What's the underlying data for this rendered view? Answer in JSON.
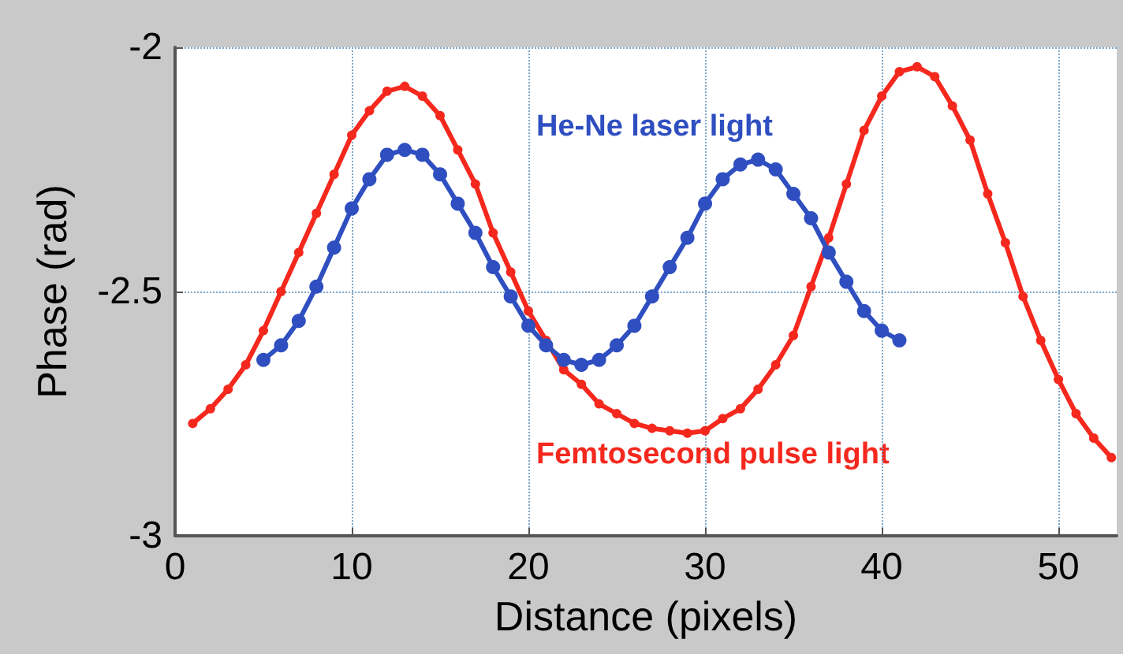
{
  "chart_data": {
    "type": "line",
    "xlabel": "Distance (pixels)",
    "ylabel": "Phase (rad)",
    "xlim": [
      0,
      53.3
    ],
    "xticks": [
      0,
      10,
      20,
      30,
      40,
      50
    ],
    "ylim": [
      -3,
      -2
    ],
    "yticks": [
      -3,
      -2.5,
      -2
    ],
    "grid": true,
    "marker": "circle",
    "line_style": "solid",
    "series": [
      {
        "name": "He-Ne laser light",
        "color": "#2f4fc0",
        "x": [
          5,
          6,
          7,
          8,
          9,
          10,
          11,
          12,
          13,
          14,
          15,
          16,
          17,
          18,
          19,
          20,
          21,
          22,
          23,
          24,
          25,
          26,
          27,
          28,
          29,
          30,
          31,
          32,
          33,
          34,
          35,
          36,
          37,
          38,
          39,
          40,
          41
        ],
        "values": [
          -2.64,
          -2.61,
          -2.56,
          -2.49,
          -2.41,
          -2.33,
          -2.27,
          -2.22,
          -2.21,
          -2.22,
          -2.26,
          -2.32,
          -2.38,
          -2.45,
          -2.51,
          -2.57,
          -2.61,
          -2.64,
          -2.65,
          -2.64,
          -2.61,
          -2.57,
          -2.51,
          -2.45,
          -2.39,
          -2.32,
          -2.27,
          -2.24,
          -2.23,
          -2.25,
          -2.3,
          -2.35,
          -2.42,
          -2.48,
          -2.54,
          -2.58,
          -2.6
        ]
      },
      {
        "name": "Femtosecond pulse light",
        "color": "#f5281e",
        "x": [
          1,
          2,
          3,
          4,
          5,
          6,
          7,
          8,
          9,
          10,
          11,
          12,
          13,
          14,
          15,
          16,
          17,
          18,
          19,
          20,
          21,
          22,
          23,
          24,
          25,
          26,
          27,
          28,
          29,
          30,
          31,
          32,
          33,
          34,
          35,
          36,
          37,
          38,
          39,
          40,
          41,
          42,
          43,
          44,
          45,
          46,
          47,
          48,
          49,
          50,
          51,
          52,
          53
        ],
        "values": [
          -2.77,
          -2.74,
          -2.7,
          -2.65,
          -2.58,
          -2.5,
          -2.42,
          -2.34,
          -2.26,
          -2.18,
          -2.13,
          -2.09,
          -2.08,
          -2.1,
          -2.14,
          -2.21,
          -2.28,
          -2.38,
          -2.46,
          -2.54,
          -2.6,
          -2.66,
          -2.69,
          -2.73,
          -2.75,
          -2.77,
          -2.78,
          -2.785,
          -2.79,
          -2.785,
          -2.76,
          -2.74,
          -2.7,
          -2.65,
          -2.59,
          -2.49,
          -2.39,
          -2.28,
          -2.17,
          -2.1,
          -2.05,
          -2.04,
          -2.06,
          -2.12,
          -2.19,
          -2.3,
          -2.4,
          -2.51,
          -2.6,
          -2.68,
          -2.75,
          -2.8,
          -2.84
        ]
      }
    ]
  }
}
